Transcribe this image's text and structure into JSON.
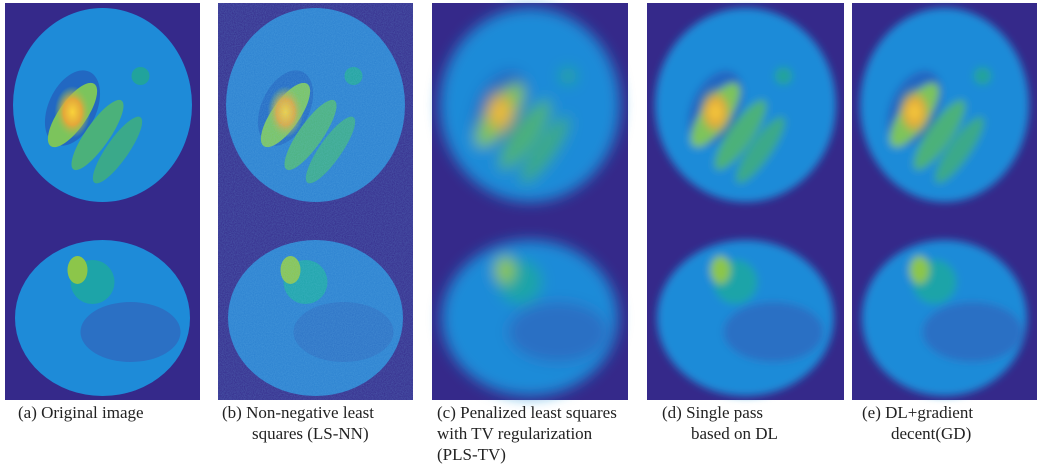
{
  "panels": [
    {
      "caption": [
        "(a) Original image"
      ]
    },
    {
      "caption": [
        "(b) Non-negative least",
        "squares (LS-NN)"
      ]
    },
    {
      "caption": [
        "(c) Penalized least squares",
        "with TV regularization",
        "(PLS-TV)"
      ]
    },
    {
      "caption": [
        "(d) Single pass",
        "based on DL"
      ]
    },
    {
      "caption": [
        "(e) DL+gradient",
        "decent(GD)"
      ]
    }
  ]
}
